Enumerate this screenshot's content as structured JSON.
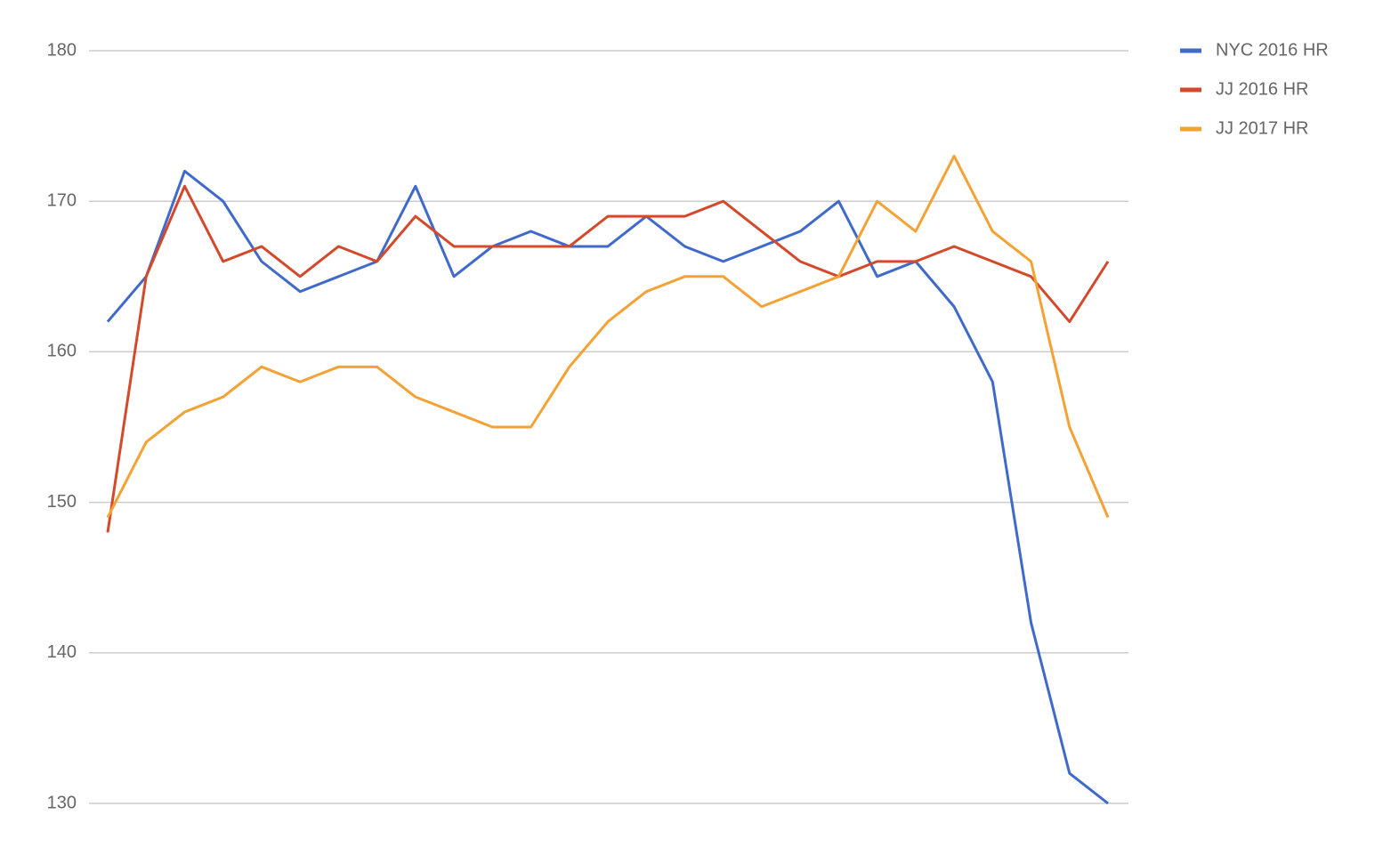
{
  "chart_data": {
    "type": "line",
    "categories": [
      null,
      null,
      null,
      null,
      null,
      null,
      null,
      null,
      null,
      null,
      null,
      null,
      null,
      null,
      null,
      null,
      null,
      null,
      null,
      null,
      null,
      null,
      null,
      null,
      null,
      null,
      null
    ],
    "series": [
      {
        "name": "NYC 2016 HR",
        "color": "#3f6ac9",
        "values": [
          162,
          165,
          172,
          170,
          166,
          164,
          165,
          166,
          171,
          165,
          167,
          168,
          167,
          167,
          169,
          167,
          166,
          167,
          168,
          170,
          165,
          166,
          163,
          158,
          142,
          132,
          130
        ]
      },
      {
        "name": "JJ 2016 HR",
        "color": "#d3492b",
        "values": [
          148,
          165,
          171,
          166,
          167,
          165,
          167,
          166,
          169,
          167,
          167,
          167,
          167,
          169,
          169,
          169,
          170,
          168,
          166,
          165,
          166,
          166,
          167,
          166,
          165,
          162,
          166
        ]
      },
      {
        "name": "JJ 2017 HR",
        "color": "#f4a235",
        "values": [
          149,
          154,
          156,
          157,
          159,
          158,
          159,
          159,
          157,
          156,
          155,
          155,
          159,
          162,
          164,
          165,
          165,
          163,
          164,
          165,
          170,
          168,
          173,
          168,
          166,
          155,
          149
        ]
      }
    ],
    "ylim": [
      130,
      180
    ],
    "yticks": [
      130,
      140,
      150,
      160,
      170,
      180
    ],
    "grid": true,
    "legend": "right"
  }
}
